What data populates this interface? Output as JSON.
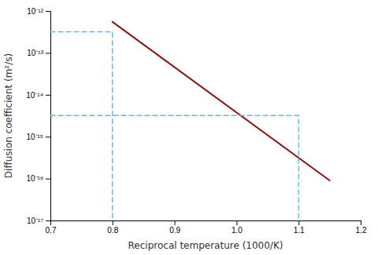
{
  "chart_data": {
    "type": "line",
    "xlabel": "Reciprocal temperature (1000/K)",
    "ylabel": "Diffusion coefficient (m²/s)",
    "log": "y",
    "grid": false,
    "xlim": [
      0.7,
      1.2
    ],
    "xticks": [
      0.7,
      0.8,
      0.9,
      {
        "value": 1.0,
        "label": "1.0"
      },
      1.1,
      1.2
    ],
    "ylim": [
      1e-17,
      1e-12
    ],
    "yticks": [
      {
        "value": 1e-17,
        "label": "10⁻¹⁷"
      },
      {
        "value": 1e-16,
        "label": "10⁻¹⁶"
      },
      {
        "value": 1e-15,
        "label": "10⁻¹⁵"
      },
      {
        "value": 1e-14,
        "label": "10⁻¹⁴"
      },
      {
        "value": 1e-13,
        "label": "10⁻¹³"
      },
      {
        "value": 1e-12,
        "label": "10⁻¹²"
      }
    ],
    "series": [
      {
        "color": "#8B1010",
        "x": [
          0.8,
          1.15
        ],
        "values": [
          5.5e-13,
          9e-17
        ]
      },
      {
        "color": "#5BBCDC",
        "line_style": "dashed",
        "x": [
          0.7,
          0.8,
          0.8
        ],
        "values": [
          3.2e-13,
          3.2e-13,
          1e-17
        ]
      },
      {
        "color": "#5BBCDC",
        "line_style": "dashed",
        "x": [
          0.7,
          1.1,
          1.1
        ],
        "values": [
          3.2e-15,
          3.2e-15,
          1e-17
        ]
      }
    ]
  }
}
